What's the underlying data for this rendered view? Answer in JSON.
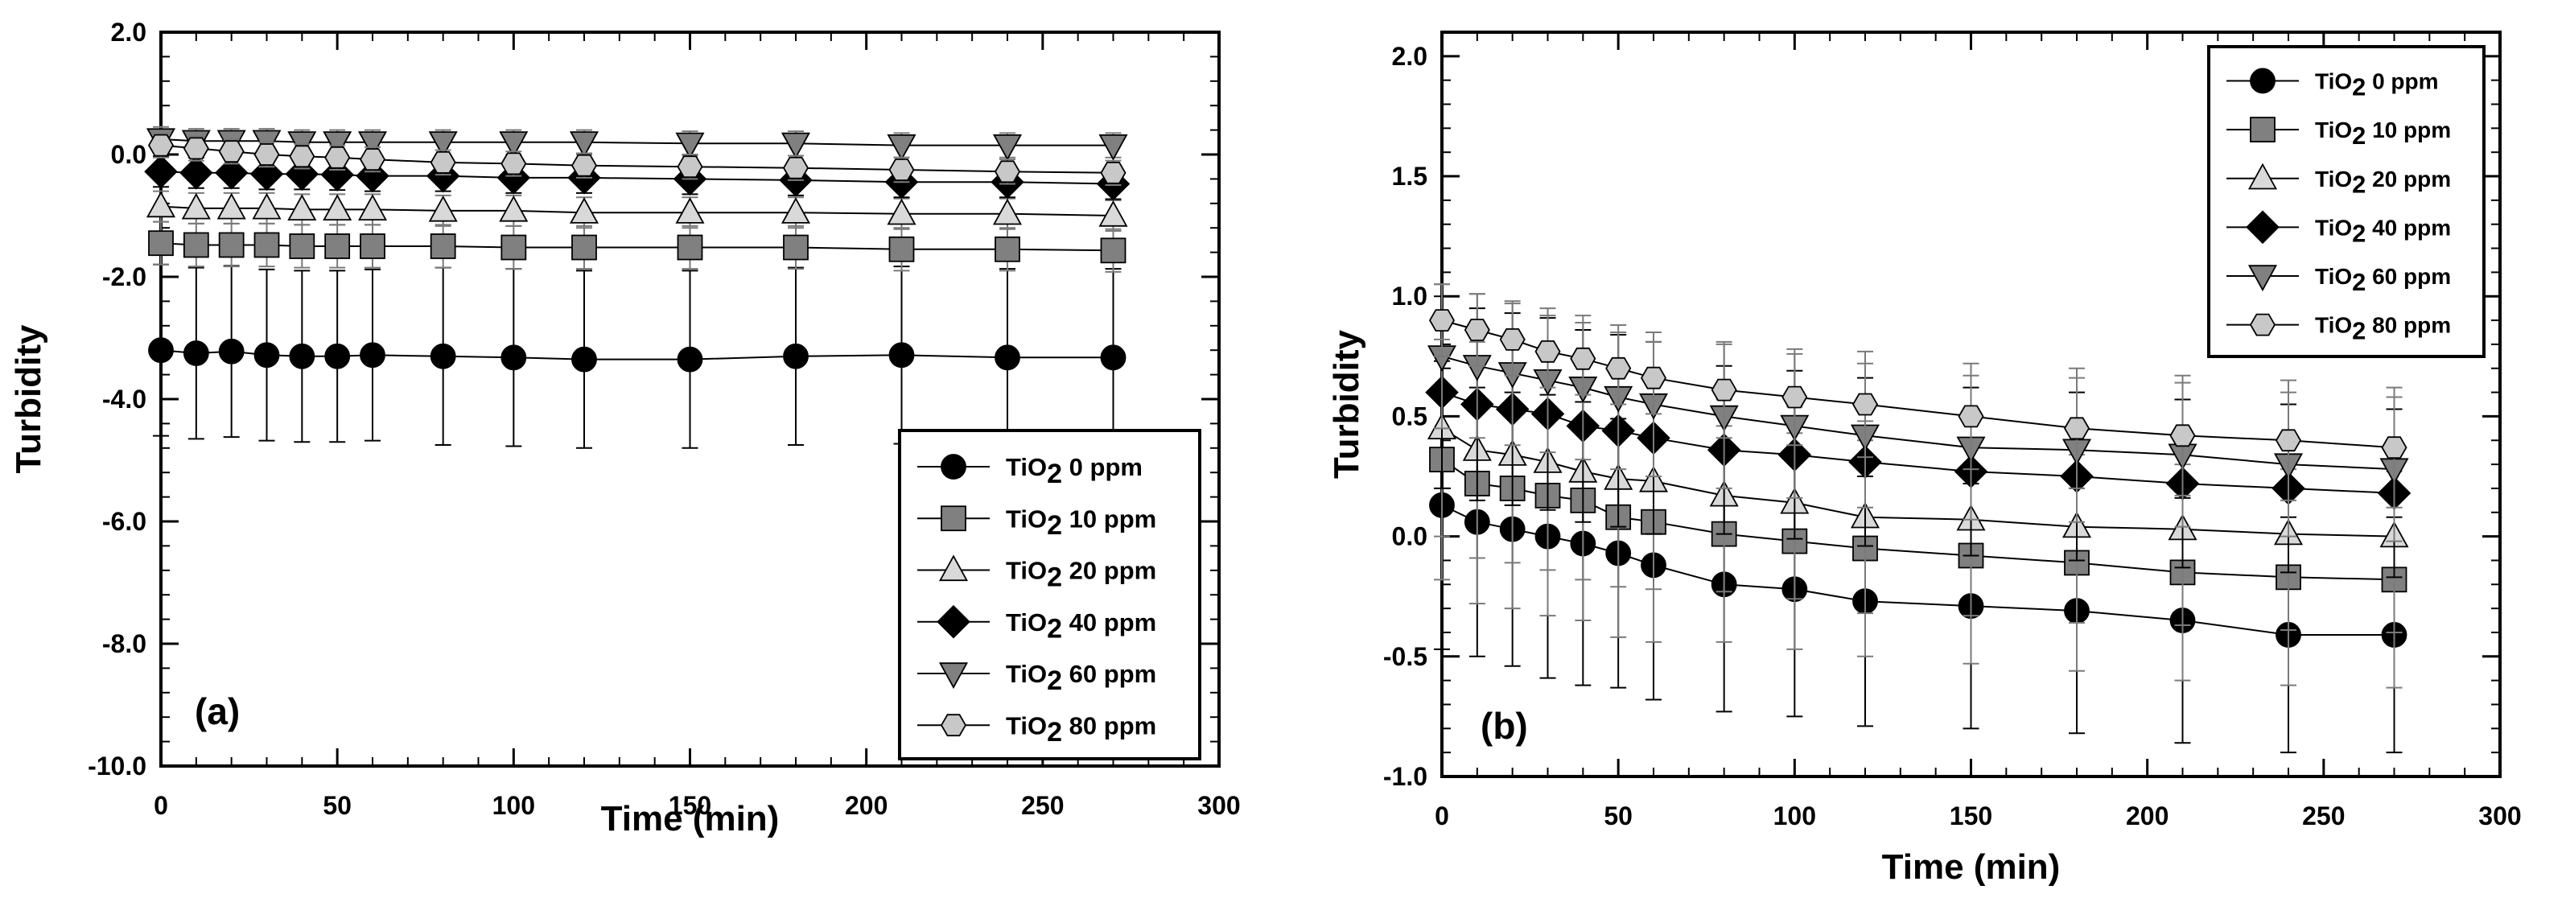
{
  "chart_data": [
    {
      "type": "scatter",
      "panel_label": "(a)",
      "xlabel": "Time (min)",
      "ylabel": "Turbidity",
      "xlim": [
        0,
        300
      ],
      "ylim": [
        -10.0,
        2.0
      ],
      "xticks": [
        0,
        50,
        100,
        150,
        200,
        250,
        300
      ],
      "xtick_labels": [
        "0",
        "50",
        "100",
        "150",
        "200",
        "250",
        "300"
      ],
      "yticks": [
        -10.0,
        -8.0,
        -6.0,
        -4.0,
        -2.0,
        0.0,
        2.0
      ],
      "ytick_labels": [
        "-10.0",
        "-8.0",
        "-6.0",
        "-4.0",
        "-2.0",
        "0.0",
        "2.0"
      ],
      "legend_position": "bottom-right",
      "x": [
        0,
        10,
        20,
        30,
        40,
        50,
        60,
        80,
        100,
        120,
        150,
        180,
        210,
        240,
        270
      ],
      "series": [
        {
          "name": "TiO2 0 ppm",
          "label_main": "TiO",
          "label_sub": "2",
          "label_rest": " 0 ppm",
          "marker": "circle",
          "color": "#000000",
          "values": [
            -3.2,
            -3.25,
            -3.22,
            -3.28,
            -3.3,
            -3.3,
            -3.28,
            -3.3,
            -3.32,
            -3.35,
            -3.35,
            -3.3,
            -3.28,
            -3.32,
            -3.32
          ],
          "errors": [
            1.4,
            1.4,
            1.4,
            1.4,
            1.4,
            1.4,
            1.4,
            1.45,
            1.45,
            1.45,
            1.45,
            1.45,
            1.45,
            1.45,
            1.45
          ]
        },
        {
          "name": "TiO2 10 ppm",
          "label_main": "TiO",
          "label_sub": "2",
          "label_rest": " 10 ppm",
          "marker": "square",
          "color": "#808080",
          "values": [
            -1.45,
            -1.48,
            -1.48,
            -1.48,
            -1.5,
            -1.5,
            -1.5,
            -1.5,
            -1.52,
            -1.52,
            -1.52,
            -1.52,
            -1.55,
            -1.55,
            -1.57
          ],
          "errors": [
            0.35,
            0.35,
            0.35,
            0.35,
            0.35,
            0.35,
            0.35,
            0.35,
            0.35,
            0.35,
            0.35,
            0.35,
            0.35,
            0.35,
            0.35
          ]
        },
        {
          "name": "TiO2 20 ppm",
          "label_main": "TiO",
          "label_sub": "2",
          "label_rest": " 20 ppm",
          "marker": "triangle-up",
          "color": "#d9d9d9",
          "values": [
            -0.85,
            -0.88,
            -0.88,
            -0.88,
            -0.9,
            -0.9,
            -0.9,
            -0.92,
            -0.92,
            -0.95,
            -0.95,
            -0.95,
            -0.97,
            -0.97,
            -1.0
          ],
          "errors": [
            0.25,
            0.25,
            0.25,
            0.25,
            0.25,
            0.25,
            0.25,
            0.25,
            0.25,
            0.25,
            0.25,
            0.25,
            0.25,
            0.25,
            0.25
          ]
        },
        {
          "name": "TiO2 40 ppm",
          "label_main": "TiO",
          "label_sub": "2",
          "label_rest": " 40 ppm",
          "marker": "diamond",
          "color": "#000000",
          "values": [
            -0.28,
            -0.3,
            -0.3,
            -0.32,
            -0.32,
            -0.33,
            -0.35,
            -0.35,
            -0.38,
            -0.38,
            -0.4,
            -0.42,
            -0.45,
            -0.45,
            -0.48
          ],
          "errors": [
            0.25,
            0.25,
            0.25,
            0.25,
            0.25,
            0.25,
            0.25,
            0.25,
            0.25,
            0.25,
            0.25,
            0.25,
            0.25,
            0.25,
            0.25
          ]
        },
        {
          "name": "TiO2 60 ppm",
          "label_main": "TiO",
          "label_sub": "2",
          "label_rest": " 60 ppm",
          "marker": "triangle-down",
          "color": "#808080",
          "values": [
            0.25,
            0.22,
            0.22,
            0.22,
            0.2,
            0.2,
            0.2,
            0.2,
            0.2,
            0.2,
            0.18,
            0.18,
            0.15,
            0.15,
            0.15
          ],
          "errors": [
            0.2,
            0.2,
            0.2,
            0.2,
            0.2,
            0.2,
            0.2,
            0.2,
            0.2,
            0.2,
            0.2,
            0.2,
            0.2,
            0.2,
            0.2
          ]
        },
        {
          "name": "TiO2 80 ppm",
          "label_main": "TiO",
          "label_sub": "2",
          "label_rest": " 80 ppm",
          "marker": "hexagon",
          "color": "#c8c8c8",
          "values": [
            0.15,
            0.1,
            0.05,
            0.0,
            -0.03,
            -0.05,
            -0.08,
            -0.13,
            -0.15,
            -0.18,
            -0.2,
            -0.22,
            -0.25,
            -0.28,
            -0.3
          ],
          "errors": [
            0.2,
            0.2,
            0.2,
            0.2,
            0.2,
            0.2,
            0.2,
            0.2,
            0.2,
            0.2,
            0.2,
            0.2,
            0.2,
            0.2,
            0.2
          ]
        }
      ]
    },
    {
      "type": "scatter",
      "panel_label": "(b)",
      "xlabel": "Time (min)",
      "ylabel": "Turbidity",
      "xlim": [
        0,
        300
      ],
      "ylim": [
        -1.0,
        2.1
      ],
      "xticks": [
        0,
        50,
        100,
        150,
        200,
        250,
        300
      ],
      "xtick_labels": [
        "0",
        "50",
        "100",
        "150",
        "200",
        "250",
        "300"
      ],
      "yticks": [
        -1.0,
        -0.5,
        0.0,
        0.5,
        1.0,
        1.5,
        2.0
      ],
      "ytick_labels": [
        "-1.0",
        "-0.5",
        "0.0",
        "0.5",
        "1.0",
        "1.5",
        "2.0"
      ],
      "legend_position": "top-right",
      "x": [
        0,
        10,
        20,
        30,
        40,
        50,
        60,
        80,
        100,
        120,
        150,
        180,
        210,
        240,
        270
      ],
      "series": [
        {
          "name": "TiO2 0 ppm",
          "label_main": "TiO",
          "label_sub": "2",
          "label_rest": " 0 ppm",
          "marker": "circle",
          "color": "#000000",
          "values": [
            0.13,
            0.06,
            0.03,
            0.0,
            -0.03,
            -0.07,
            -0.12,
            -0.2,
            -0.22,
            -0.27,
            -0.29,
            -0.31,
            -0.35,
            -0.41,
            -0.41
          ],
          "errors": [
            0.6,
            0.56,
            0.57,
            0.59,
            0.59,
            0.56,
            0.56,
            0.53,
            0.53,
            0.52,
            0.51,
            0.51,
            0.51,
            0.49,
            0.49
          ]
        },
        {
          "name": "TiO2 10 ppm",
          "label_main": "TiO",
          "label_sub": "2",
          "label_rest": " 10 ppm",
          "marker": "square",
          "color": "#808080",
          "values": [
            0.32,
            0.22,
            0.2,
            0.17,
            0.15,
            0.08,
            0.06,
            0.01,
            -0.02,
            -0.05,
            -0.08,
            -0.11,
            -0.15,
            -0.17,
            -0.18
          ],
          "errors": [
            0.5,
            0.5,
            0.5,
            0.5,
            0.5,
            0.5,
            0.5,
            0.45,
            0.45,
            0.45,
            0.45,
            0.45,
            0.45,
            0.45,
            0.45
          ]
        },
        {
          "name": "TiO2 20 ppm",
          "label_main": "TiO",
          "label_sub": "2",
          "label_rest": " 20 ppm",
          "marker": "triangle-up",
          "color": "#d9d9d9",
          "values": [
            0.45,
            0.36,
            0.34,
            0.31,
            0.27,
            0.24,
            0.23,
            0.17,
            0.14,
            0.08,
            0.07,
            0.04,
            0.03,
            0.01,
            0.0
          ],
          "errors": [
            0.45,
            0.45,
            0.45,
            0.45,
            0.45,
            0.45,
            0.45,
            0.4,
            0.4,
            0.4,
            0.4,
            0.4,
            0.4,
            0.4,
            0.4
          ]
        },
        {
          "name": "TiO2 40 ppm",
          "label_main": "TiO",
          "label_sub": "2",
          "label_rest": " 40 ppm",
          "marker": "diamond",
          "color": "#000000",
          "values": [
            0.6,
            0.55,
            0.53,
            0.51,
            0.46,
            0.44,
            0.41,
            0.36,
            0.34,
            0.31,
            0.27,
            0.25,
            0.22,
            0.2,
            0.18
          ],
          "errors": [
            0.4,
            0.4,
            0.4,
            0.4,
            0.4,
            0.4,
            0.4,
            0.35,
            0.35,
            0.35,
            0.35,
            0.35,
            0.35,
            0.35,
            0.35
          ]
        },
        {
          "name": "TiO2 60 ppm",
          "label_main": "TiO",
          "label_sub": "2",
          "label_rest": " 60 ppm",
          "marker": "triangle-down",
          "color": "#808080",
          "values": [
            0.75,
            0.71,
            0.68,
            0.65,
            0.62,
            0.58,
            0.55,
            0.5,
            0.46,
            0.42,
            0.37,
            0.36,
            0.34,
            0.3,
            0.28
          ],
          "errors": [
            0.3,
            0.3,
            0.3,
            0.3,
            0.3,
            0.3,
            0.3,
            0.3,
            0.3,
            0.3,
            0.3,
            0.3,
            0.3,
            0.3,
            0.3
          ]
        },
        {
          "name": "TiO2 80 ppm",
          "label_main": "TiO",
          "label_sub": "2",
          "label_rest": " 80 ppm",
          "marker": "hexagon",
          "color": "#c8c8c8",
          "values": [
            0.9,
            0.86,
            0.82,
            0.77,
            0.74,
            0.7,
            0.66,
            0.61,
            0.58,
            0.55,
            0.5,
            0.45,
            0.42,
            0.4,
            0.37
          ],
          "errors": [
            0.15,
            0.15,
            0.15,
            0.15,
            0.15,
            0.15,
            0.15,
            0.2,
            0.2,
            0.22,
            0.22,
            0.25,
            0.25,
            0.25,
            0.25
          ]
        }
      ]
    }
  ]
}
